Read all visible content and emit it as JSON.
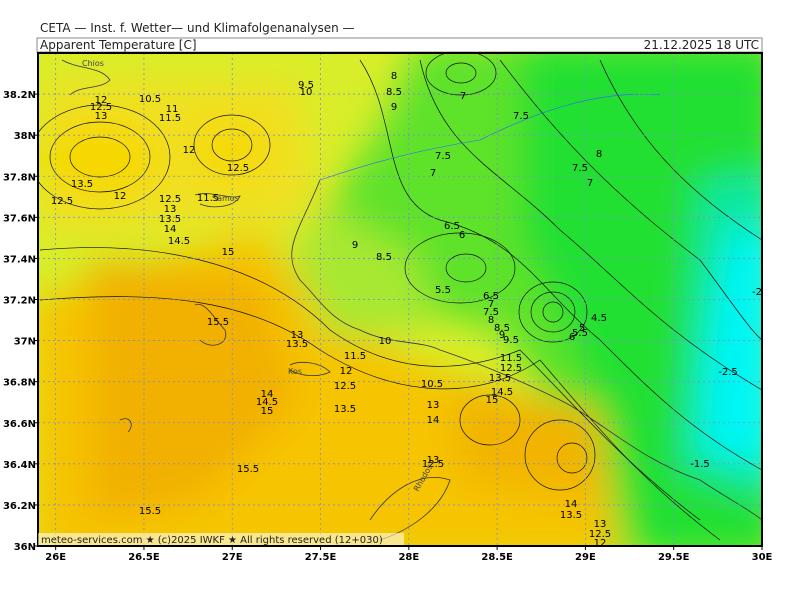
{
  "header": "CETA — Inst. f. Wetter— und Klimafolgenanalysen —",
  "title": "Apparent Temperature [C]",
  "valid_time": "21.12.2025 18 UTC",
  "footer": "meteo-services.com ★ (c)2025 IWKF ★ All rights reserved (12+030)",
  "map": {
    "xlim": [
      25.9,
      30.0
    ],
    "ylim": [
      36.0,
      38.4
    ],
    "xticks": [
      {
        "value": 26,
        "label": "26E"
      },
      {
        "value": 26.5,
        "label": "26.5E"
      },
      {
        "value": 27,
        "label": "27E"
      },
      {
        "value": 27.5,
        "label": "27.5E"
      },
      {
        "value": 28,
        "label": "28E"
      },
      {
        "value": 28.5,
        "label": "28.5E"
      },
      {
        "value": 29,
        "label": "29E"
      },
      {
        "value": 29.5,
        "label": "29.5E"
      },
      {
        "value": 30,
        "label": "30E"
      }
    ],
    "yticks": [
      {
        "value": 36,
        "label": "36N"
      },
      {
        "value": 36.2,
        "label": "36.2N"
      },
      {
        "value": 36.4,
        "label": "36.4N"
      },
      {
        "value": 36.6,
        "label": "36.6N"
      },
      {
        "value": 36.8,
        "label": "36.8N"
      },
      {
        "value": 37,
        "label": "37N"
      },
      {
        "value": 37.2,
        "label": "37.2N"
      },
      {
        "value": 37.4,
        "label": "37.4N"
      },
      {
        "value": 37.6,
        "label": "37.6N"
      },
      {
        "value": 37.8,
        "label": "37.8N"
      },
      {
        "value": 38,
        "label": "38N"
      },
      {
        "value": 38.2,
        "label": "38.2N"
      }
    ],
    "grid": true,
    "places": [
      "Chios",
      "Samos",
      "Kos",
      "Rhodos"
    ],
    "contour_labels": [
      12,
      12.5,
      13,
      10.5,
      11,
      11.5,
      9.5,
      10,
      8,
      8.5,
      9,
      7,
      7.5,
      7.5,
      7,
      8,
      7.5,
      7,
      12,
      12.5,
      13.5,
      12.5,
      12,
      12.5,
      13,
      13.5,
      14,
      14.5,
      11.5,
      15,
      9,
      8.5,
      6.5,
      6,
      5.5,
      6.5,
      7,
      7.5,
      8,
      8.5,
      9,
      9.5,
      10,
      13,
      13.5,
      11.5,
      12,
      12.5,
      13.5,
      10.5,
      13,
      14,
      11.5,
      12.5,
      13.5,
      14.5,
      15,
      14,
      14.5,
      15,
      4.5,
      5,
      5.5,
      6,
      -2.5,
      -2,
      -1.5,
      15.5,
      15.5,
      15.5,
      13,
      12.5,
      14,
      13.5,
      13,
      12.5,
      12
    ]
  }
}
